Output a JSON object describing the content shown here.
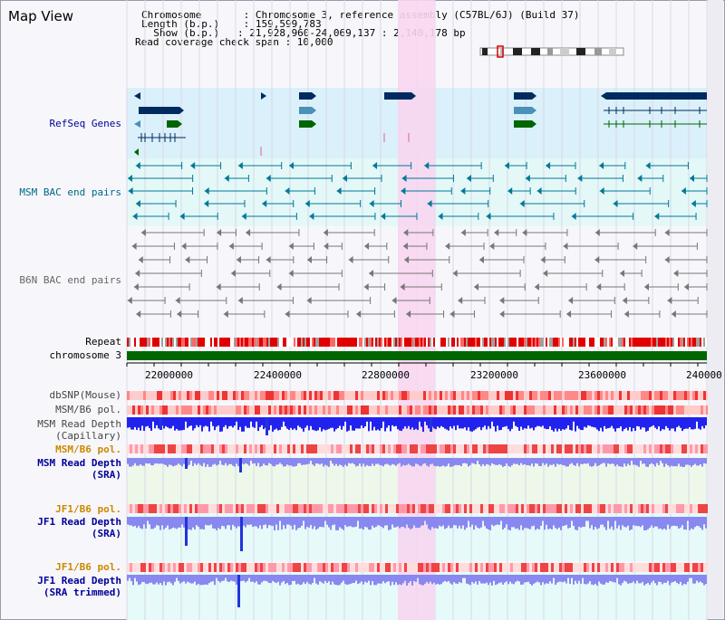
{
  "window": {
    "title": "Map View"
  },
  "header": {
    "line1": "Chromosome       : Chromosome 3, reference assembly (C57BL/6J) (Build 37)",
    "line2": "Length (b.p.)    : 159,599,783",
    "line3": "  Show (b.p.)   : 21,928,960-24,069,137 : 2,140,178 bp",
    "line4": "Read coverage check span : 10,000"
  },
  "tracks": {
    "refseq": "RefSeq Genes",
    "msm_bac": "MSM BAC end pairs",
    "b6n_bac": "B6N BAC end pairs",
    "repeat": "Repeat",
    "chromosome": "chromosome 3",
    "dbsnp": "dbSNP(Mouse)",
    "msm_pol": "MSM/B6 pol.",
    "msm_depth_cap_1": "MSM Read Depth",
    "msm_depth_cap_2": "(Capillary)",
    "msm_pol_2": "MSM/B6 pol.",
    "msm_depth_sra_1": "MSM Read Depth",
    "msm_depth_sra_2": "(SRA)",
    "jf1_pol": "JF1/B6 pol.",
    "jf1_depth_1": "JF1 Read Depth",
    "jf1_depth_2": "(SRA)",
    "jf1_pol_2": "JF1/B6 pol.",
    "jf1_trim_1": "JF1 Read Depth",
    "jf1_trim_2": "(SRA trimmed)"
  },
  "axis": {
    "ticks": [
      "22000000",
      "22400000",
      "22800000",
      "23200000",
      "23600000",
      "240000"
    ]
  },
  "colors": {
    "refseq_bg": "#daf0fa",
    "msm_bac_bg": "#e4f8f8",
    "highlight": "#f7d6f0",
    "gene_navy": "#002a60",
    "gene_teal": "#4a90b8",
    "gene_green": "#006600",
    "msm_bac": "#007898",
    "b6n_bac": "#777777",
    "label_navy": "#000099",
    "label_teal": "#006688",
    "label_orange": "#cc8800",
    "depth_blue": "#2222ee",
    "depth_light": "#8888f0"
  }
}
